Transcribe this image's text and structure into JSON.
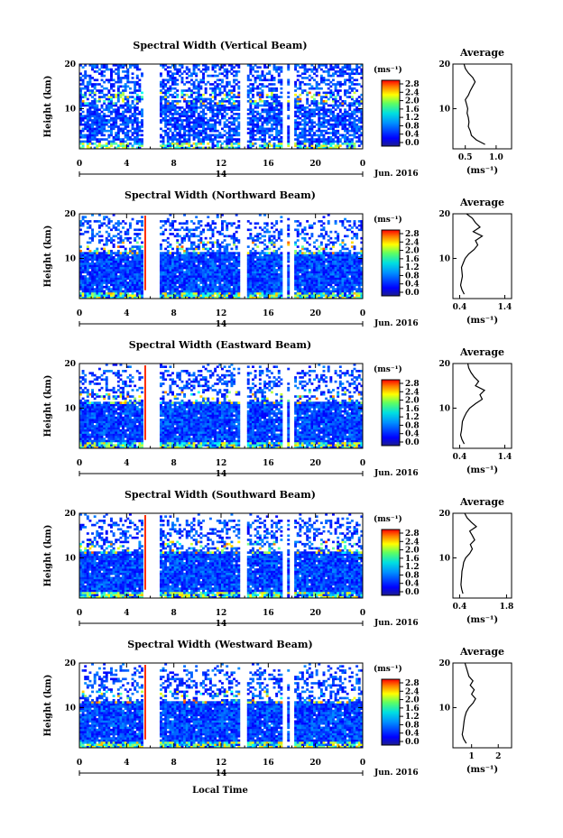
{
  "xlabel": "Local Time",
  "date_label": "Jun. 2016",
  "day_label": "14",
  "ylabel": "Height (km)",
  "cb_unit": "(ms⁻¹)",
  "avg_title": "Average",
  "avg_xlabel": "(ms⁻¹)",
  "chart_data": [
    {
      "type": "heatmap",
      "title": "Spectral Width (Vertical Beam)",
      "x_ticks": [
        "0",
        "4",
        "8",
        "12",
        "16",
        "20",
        "0"
      ],
      "y_ticks": [
        "10",
        "20"
      ],
      "ylim": [
        1,
        20
      ],
      "colorbar_ticks": [
        "0.0",
        "0.4",
        "0.8",
        "1.2",
        "1.6",
        "2.0",
        "2.4",
        "2.8"
      ],
      "avg_ticks": [
        {
          "v": 0.5,
          "label": "0.5"
        },
        {
          "v": 1.0,
          "label": "1.0"
        }
      ],
      "avg_xlim": [
        0.3,
        1.25
      ],
      "avg_profile": {
        "height": [
          2,
          3,
          4,
          5,
          6,
          7,
          8,
          9,
          10,
          11,
          12,
          13,
          14,
          15,
          16,
          17,
          18,
          19,
          20
        ],
        "value": [
          0.82,
          0.68,
          0.6,
          0.58,
          0.55,
          0.56,
          0.55,
          0.53,
          0.54,
          0.52,
          0.5,
          0.55,
          0.58,
          0.62,
          0.66,
          0.62,
          0.55,
          0.5,
          0.48
        ]
      }
    },
    {
      "type": "heatmap",
      "title": "Spectral Width (Northward Beam)",
      "x_ticks": [
        "0",
        "4",
        "8",
        "12",
        "16",
        "20",
        "0"
      ],
      "y_ticks": [
        "10",
        "20"
      ],
      "ylim": [
        1,
        20
      ],
      "colorbar_ticks": [
        "0.0",
        "0.4",
        "0.8",
        "1.2",
        "1.6",
        "2.0",
        "2.4",
        "2.8"
      ],
      "avg_ticks": [
        {
          "v": 0.4,
          "label": "0.4"
        },
        {
          "v": 1.4,
          "label": "1.4"
        }
      ],
      "avg_xlim": [
        0.25,
        1.55
      ],
      "avg_profile": {
        "height": [
          2,
          3,
          4,
          5,
          6,
          7,
          8,
          9,
          10,
          11,
          12,
          13,
          14,
          15,
          16,
          17,
          18,
          19,
          20
        ],
        "value": [
          0.5,
          0.45,
          0.42,
          0.44,
          0.46,
          0.45,
          0.44,
          0.48,
          0.52,
          0.6,
          0.72,
          0.8,
          0.75,
          0.9,
          0.7,
          0.85,
          0.75,
          0.68,
          0.55
        ]
      }
    },
    {
      "type": "heatmap",
      "title": "Spectral Width (Eastward Beam)",
      "x_ticks": [
        "0",
        "4",
        "8",
        "12",
        "16",
        "20",
        "0"
      ],
      "y_ticks": [
        "10",
        "20"
      ],
      "ylim": [
        1,
        20
      ],
      "colorbar_ticks": [
        "0.0",
        "0.4",
        "0.8",
        "1.2",
        "1.6",
        "2.0",
        "2.4",
        "2.8"
      ],
      "avg_ticks": [
        {
          "v": 0.4,
          "label": "0.4"
        },
        {
          "v": 1.4,
          "label": "1.4"
        }
      ],
      "avg_xlim": [
        0.25,
        1.55
      ],
      "avg_profile": {
        "height": [
          2,
          3,
          4,
          5,
          6,
          7,
          8,
          9,
          10,
          11,
          12,
          13,
          14,
          15,
          16,
          17,
          18,
          19,
          20
        ],
        "value": [
          0.5,
          0.45,
          0.42,
          0.44,
          0.45,
          0.46,
          0.5,
          0.55,
          0.62,
          0.75,
          0.9,
          0.85,
          0.95,
          0.75,
          0.82,
          0.72,
          0.65,
          0.6,
          0.58
        ]
      }
    },
    {
      "type": "heatmap",
      "title": "Spectral Width (Southward Beam)",
      "x_ticks": [
        "0",
        "4",
        "8",
        "12",
        "16",
        "20",
        "0"
      ],
      "y_ticks": [
        "10",
        "20"
      ],
      "ylim": [
        1,
        20
      ],
      "colorbar_ticks": [
        "0.0",
        "0.4",
        "0.8",
        "1.2",
        "1.6",
        "2.0",
        "2.4",
        "2.8"
      ],
      "avg_ticks": [
        {
          "v": 0.4,
          "label": "0.4"
        },
        {
          "v": 1.8,
          "label": "1.8"
        }
      ],
      "avg_xlim": [
        0.2,
        1.95
      ],
      "avg_profile": {
        "height": [
          2,
          3,
          4,
          5,
          6,
          7,
          8,
          9,
          10,
          11,
          12,
          13,
          14,
          15,
          16,
          17,
          18,
          19,
          20
        ],
        "value": [
          0.5,
          0.46,
          0.44,
          0.45,
          0.46,
          0.47,
          0.5,
          0.52,
          0.58,
          0.7,
          0.78,
          0.72,
          0.85,
          0.78,
          0.7,
          0.9,
          0.75,
          0.62,
          0.55
        ]
      }
    },
    {
      "type": "heatmap",
      "title": "Spectral Width (Westward Beam)",
      "x_ticks": [
        "0",
        "4",
        "8",
        "12",
        "16",
        "20",
        "0"
      ],
      "y_ticks": [
        "10",
        "20"
      ],
      "ylim": [
        1,
        20
      ],
      "colorbar_ticks": [
        "0.0",
        "0.4",
        "0.8",
        "1.2",
        "1.6",
        "2.0",
        "2.4",
        "2.8"
      ],
      "avg_ticks": [
        {
          "v": 1,
          "label": "1"
        },
        {
          "v": 2,
          "label": "2"
        }
      ],
      "avg_xlim": [
        0.3,
        2.5
      ],
      "avg_profile": {
        "height": [
          2,
          3,
          4,
          5,
          6,
          7,
          8,
          9,
          10,
          11,
          12,
          13,
          14,
          15,
          16,
          17,
          18,
          19,
          20
        ],
        "value": [
          0.8,
          0.7,
          0.65,
          0.68,
          0.7,
          0.72,
          0.75,
          0.8,
          0.9,
          1.05,
          1.15,
          1.0,
          1.1,
          0.95,
          1.05,
          0.9,
          0.85,
          0.8,
          0.75
        ]
      }
    }
  ]
}
